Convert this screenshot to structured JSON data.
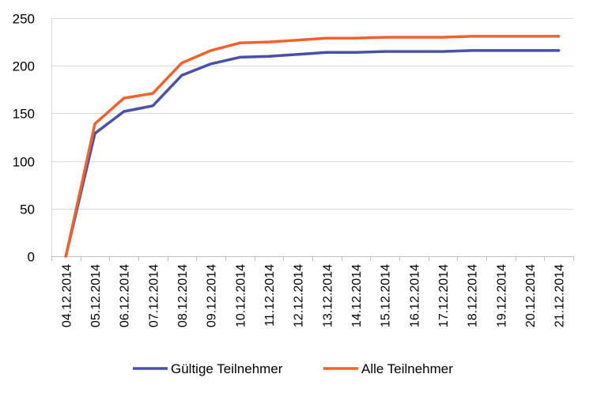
{
  "chart_data": {
    "type": "line",
    "title": "",
    "xlabel": "",
    "ylabel": "",
    "x": [
      "04.12.2014",
      "05.12.2014",
      "06.12.2014",
      "07.12.2014",
      "08.12.2014",
      "09.12.2014",
      "10.12.2014",
      "11.12.2014",
      "12.12.2014",
      "13.12.2014",
      "14.12.2014",
      "15.12.2014",
      "16.12.2014",
      "17.12.2014",
      "18.12.2014",
      "19.12.2014",
      "20.12.2014",
      "21.12.2014"
    ],
    "ylim": [
      0,
      250
    ],
    "yticks": [
      0,
      50,
      100,
      150,
      200,
      250
    ],
    "grid": true,
    "legend_position": "bottom",
    "series": [
      {
        "name": "Gültige Teilnehmer",
        "color": "#4a4fa8",
        "values": [
          0,
          129,
          152,
          158,
          190,
          202,
          209,
          210,
          212,
          214,
          214,
          215,
          215,
          215,
          216,
          216,
          216,
          216
        ]
      },
      {
        "name": "Alle Teilnehmer",
        "color": "#f0622d",
        "values": [
          0,
          139,
          166,
          171,
          203,
          216,
          224,
          225,
          227,
          229,
          229,
          230,
          230,
          230,
          231,
          231,
          231,
          231
        ]
      }
    ]
  }
}
